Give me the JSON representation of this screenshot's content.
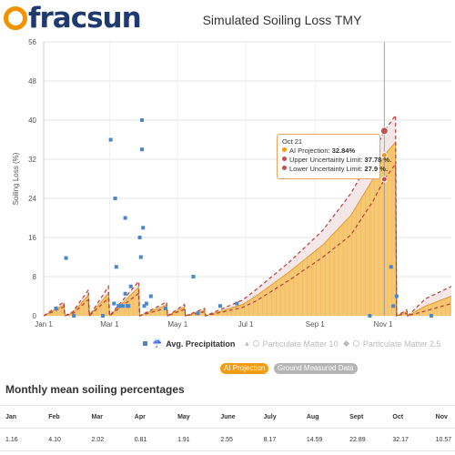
{
  "logo": {
    "text": "fracsun"
  },
  "chart_title": "Simulated Soiling Loss TMY",
  "tooltip": {
    "date": "Oct 21",
    "rows": [
      {
        "label": "AI Projection:",
        "value": "32.84%",
        "color": "#f39c12"
      },
      {
        "label": "Upper Uncertainty Limit:",
        "value": "37.78 %.",
        "color": "#c0504d"
      },
      {
        "label": "Lower Uncertainty Limit:",
        "value": "27.9 %.",
        "color": "#c0504d"
      }
    ]
  },
  "legend": [
    {
      "label": "Avg. Precipitation",
      "state": "on",
      "icon": "square-marker-icon",
      "glyph": "☔"
    },
    {
      "label": "Particulate Matter 10",
      "state": "off",
      "icon": "triangle-marker-icon",
      "glyph": "▴"
    },
    {
      "label": "Particulate Matter 2.5",
      "state": "off",
      "icon": "diamond-marker-icon",
      "glyph": "◆"
    }
  ],
  "toggles": [
    {
      "label": "AI Projection",
      "state": "active",
      "color": "#f39c12"
    },
    {
      "label": "Ground Measured Data",
      "state": "inactive",
      "color": "#b5b5b5"
    }
  ],
  "table": {
    "title": "Monthly mean soiling percentages",
    "headers": [
      "Jan",
      "Feb",
      "Mar",
      "Apr",
      "May",
      "June",
      "July",
      "Aug",
      "Sept",
      "Oct",
      "Nov"
    ],
    "values": [
      "1.16",
      "4.10",
      "2.02",
      "0.81",
      "1.91",
      "2.55",
      "8.17",
      "14.59",
      "22.89",
      "32.17",
      "10.57"
    ]
  },
  "chart_data": {
    "type": "area",
    "title": "Simulated Soiling Loss TMY",
    "ylabel": "Soiling Loss (%)",
    "ylim": [
      0,
      56
    ],
    "yticks": [
      "0",
      "8",
      "16",
      "24",
      "32",
      "40",
      "48",
      "56"
    ],
    "xticks": [
      "Jan 1",
      "Mar 1",
      "May 1",
      "Jul 1",
      "Sep 1",
      "Nov 1"
    ],
    "colors": {
      "projection": "#f7c873",
      "projection_edge": "#e39a2b",
      "uncertainty": "#b5413f",
      "precipitation": "#4a86c8",
      "marker": "#c0504d"
    },
    "series": [
      {
        "name": "AI Projection",
        "points": [
          [
            0,
            0
          ],
          [
            18,
            2.2
          ],
          [
            19,
            0
          ],
          [
            26,
            0.6
          ],
          [
            40,
            4.2
          ],
          [
            41,
            0
          ],
          [
            58,
            4.6
          ],
          [
            59,
            0
          ],
          [
            85,
            5.8
          ],
          [
            86,
            0
          ],
          [
            110,
            2.2
          ],
          [
            111,
            0
          ],
          [
            126,
            1.8
          ],
          [
            127,
            0
          ],
          [
            144,
            1.1
          ],
          [
            145,
            0
          ],
          [
            178,
            2.3
          ],
          [
            190,
            4
          ],
          [
            220,
            9
          ],
          [
            250,
            14.5
          ],
          [
            275,
            20.5
          ],
          [
            295,
            28
          ],
          [
            305,
            32.84
          ],
          [
            315,
            35.5
          ],
          [
            316,
            0
          ],
          [
            325,
            0.8
          ],
          [
            326,
            0
          ],
          [
            342,
            2
          ],
          [
            365,
            4
          ]
        ]
      },
      {
        "name": "Upper Uncertainty Limit",
        "points": [
          [
            0,
            0
          ],
          [
            18,
            2.8
          ],
          [
            19,
            0
          ],
          [
            26,
            0.8
          ],
          [
            40,
            5.3
          ],
          [
            41,
            0
          ],
          [
            58,
            6
          ],
          [
            59,
            0
          ],
          [
            85,
            7
          ],
          [
            86,
            0
          ],
          [
            110,
            2.8
          ],
          [
            111,
            0
          ],
          [
            126,
            2.3
          ],
          [
            127,
            0
          ],
          [
            144,
            1.5
          ],
          [
            145,
            0
          ],
          [
            178,
            3.2
          ],
          [
            190,
            5.3
          ],
          [
            220,
            11
          ],
          [
            250,
            17.5
          ],
          [
            275,
            25
          ],
          [
            295,
            33
          ],
          [
            305,
            37.78
          ],
          [
            315,
            41
          ],
          [
            316,
            0
          ],
          [
            325,
            1.2
          ],
          [
            326,
            0
          ],
          [
            342,
            3.5
          ],
          [
            365,
            6
          ]
        ]
      },
      {
        "name": "Lower Uncertainty Limit",
        "points": [
          [
            0,
            0
          ],
          [
            18,
            1.8
          ],
          [
            19,
            0
          ],
          [
            26,
            0.4
          ],
          [
            40,
            3.3
          ],
          [
            41,
            0
          ],
          [
            58,
            3.6
          ],
          [
            59,
            0
          ],
          [
            85,
            4.6
          ],
          [
            86,
            0
          ],
          [
            110,
            1.6
          ],
          [
            111,
            0
          ],
          [
            126,
            1.3
          ],
          [
            127,
            0
          ],
          [
            144,
            0.8
          ],
          [
            145,
            0
          ],
          [
            178,
            1.7
          ],
          [
            190,
            3
          ],
          [
            220,
            7.3
          ],
          [
            250,
            12
          ],
          [
            275,
            16.5
          ],
          [
            295,
            23.5
          ],
          [
            305,
            27.9
          ],
          [
            315,
            31
          ],
          [
            316,
            0
          ],
          [
            325,
            0.5
          ],
          [
            326,
            0
          ],
          [
            342,
            1
          ],
          [
            365,
            2.5
          ]
        ]
      },
      {
        "name": "Avg. Precipitation",
        "points": [
          [
            11,
            1.5
          ],
          [
            20,
            11.8
          ],
          [
            27,
            0
          ],
          [
            53,
            0
          ],
          [
            60,
            36
          ],
          [
            63,
            2.5
          ],
          [
            64,
            24
          ],
          [
            65,
            10
          ],
          [
            67,
            2
          ],
          [
            69,
            2
          ],
          [
            71,
            2
          ],
          [
            73,
            20
          ],
          [
            73,
            4.5
          ],
          [
            75,
            2
          ],
          [
            76,
            2
          ],
          [
            78,
            6
          ],
          [
            88,
            34
          ],
          [
            89,
            18
          ],
          [
            88,
            40
          ],
          [
            86,
            16
          ],
          [
            87,
            12
          ],
          [
            90,
            2
          ],
          [
            92,
            2.5
          ],
          [
            96,
            4
          ],
          [
            109,
            1.5
          ],
          [
            134,
            8
          ],
          [
            138,
            0.5
          ],
          [
            158,
            2
          ],
          [
            173,
            2.5
          ],
          [
            292,
            0
          ],
          [
            311,
            10
          ],
          [
            313,
            2
          ],
          [
            316,
            4
          ],
          [
            347,
            0
          ]
        ]
      }
    ],
    "highlight": {
      "x_label": "Oct 21",
      "ai": 32.84,
      "upper": 37.78,
      "lower": 27.9
    }
  }
}
